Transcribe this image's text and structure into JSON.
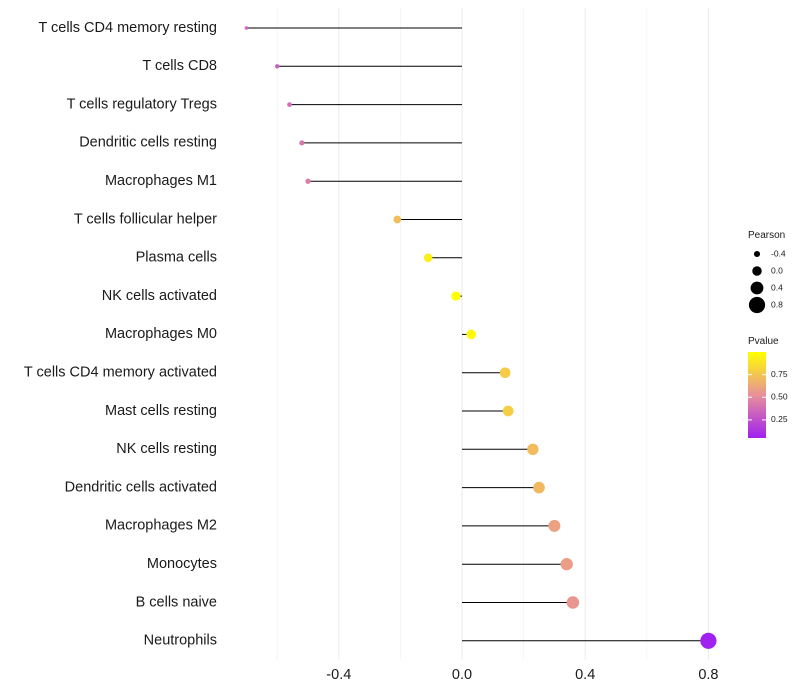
{
  "chart_data": {
    "type": "lollipop",
    "title": "",
    "xlabel": "",
    "ylabel": "",
    "xlim": [
      -0.72,
      0.84
    ],
    "xticks": [
      -0.4,
      0.0,
      0.4,
      0.8
    ],
    "xtick_labels": [
      "-0.4",
      "0.0",
      "0.4",
      "0.8"
    ],
    "categories": [
      "T cells CD4 memory resting",
      "T cells CD8",
      "T cells regulatory  Tregs ",
      "Dendritic cells resting",
      "Macrophages M1",
      "T cells follicular helper",
      "Plasma cells",
      "NK cells activated",
      "Macrophages M0",
      "T cells CD4 memory activated",
      "Mast cells resting",
      "NK cells resting",
      "Dendritic cells activated",
      "Macrophages M2",
      "Monocytes",
      "B cells naive",
      "Neutrophils"
    ],
    "pearson": [
      -0.7,
      -0.6,
      -0.56,
      -0.52,
      -0.5,
      -0.21,
      -0.11,
      -0.02,
      0.03,
      0.14,
      0.15,
      0.23,
      0.25,
      0.3,
      0.34,
      0.36,
      0.8
    ],
    "pvalue": [
      0.35,
      0.33,
      0.38,
      0.42,
      0.45,
      0.72,
      0.93,
      1.0,
      0.97,
      0.78,
      0.79,
      0.71,
      0.7,
      0.6,
      0.58,
      0.55,
      0.05
    ],
    "legend": {
      "size_title": "Pearson",
      "size_values": [
        -0.4,
        0.0,
        0.4,
        0.8
      ],
      "size_labels": [
        "-0.4",
        "0.0",
        "0.4",
        "0.8"
      ],
      "color_title": "Pvalue",
      "color_ticks": [
        0.25,
        0.5,
        0.75
      ],
      "color_tick_labels": [
        "0.25",
        "0.50",
        "0.75"
      ],
      "color_range": [
        0.05,
        1.0
      ],
      "color_low": "#a020f0",
      "color_mid": "#e8909a",
      "color_high": "#ffff00",
      "placement": "right"
    }
  }
}
